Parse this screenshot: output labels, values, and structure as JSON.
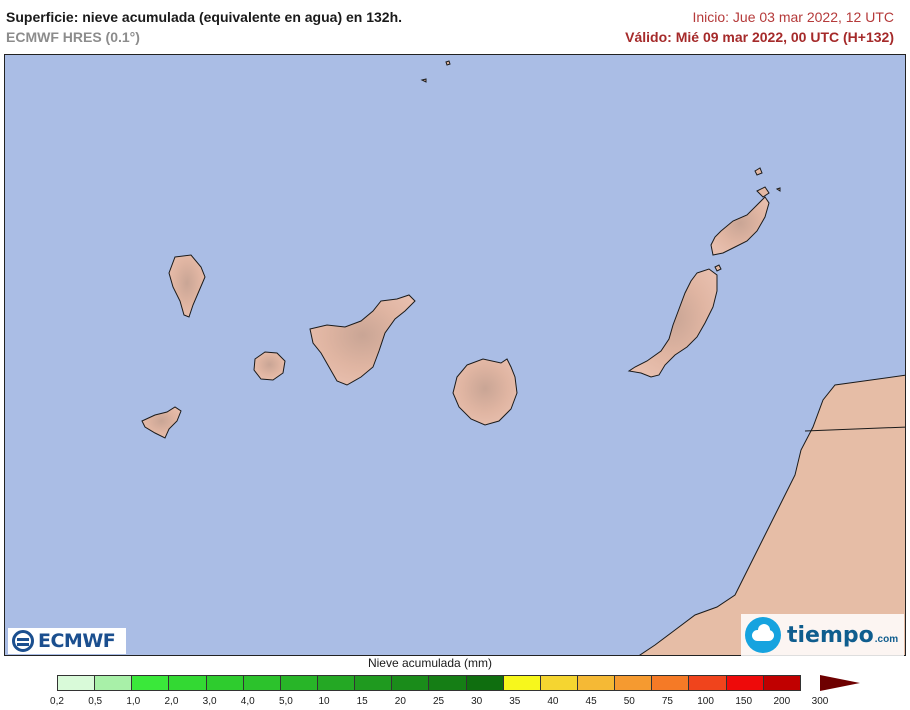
{
  "header": {
    "title": "Superficie: nieve acumulada (equivalente en agua) en 132h.",
    "model": "ECMWF HRES (0.1°)",
    "init": "Inicio: Jue 03 mar 2022, 12 UTC",
    "valid": "Válido: Mié 09 mar 2022, 00 UTC (H+132)"
  },
  "map": {
    "sea_color": "#aabde5",
    "land_color": "#e4b8a3",
    "coast_color": "#1a1a1a",
    "features": [
      "la-palma",
      "el-hierro",
      "la-gomera",
      "tenerife",
      "gran-canaria",
      "fuerteventura",
      "lanzarote",
      "la-graciosa",
      "african-coast"
    ]
  },
  "logos": {
    "ecmwf": "ECMWF",
    "tiempo": "tiempo",
    "tiempo_domain": ".com"
  },
  "legend": {
    "title": "Nieve acumulada (mm)",
    "ticks": [
      "0,2",
      "0,5",
      "1,0",
      "2,0",
      "3,0",
      "4,0",
      "5,0",
      "10",
      "15",
      "20",
      "25",
      "30",
      "35",
      "40",
      "45",
      "50",
      "75",
      "100",
      "150",
      "200",
      "300"
    ],
    "colors": [
      "#d9fad9",
      "#a8f0a8",
      "#3ae83a",
      "#33d933",
      "#2ecc2e",
      "#2cc22c",
      "#28b528",
      "#24a824",
      "#1f9a1f",
      "#1a8c1a",
      "#157e15",
      "#0f6e0f",
      "#f7f71c",
      "#f5d530",
      "#f5b935",
      "#f59a30",
      "#f57a26",
      "#f0441c",
      "#ee0a0a",
      "#c00000"
    ],
    "arrow_color": "#6e0000"
  }
}
